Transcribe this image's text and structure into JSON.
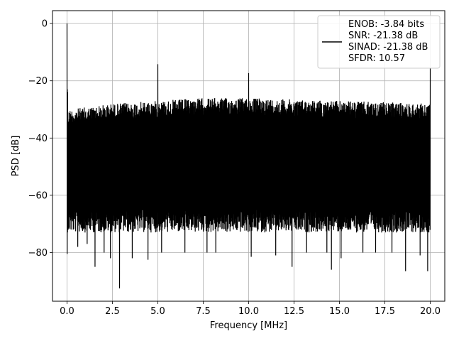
{
  "chart_data": {
    "type": "line",
    "title": "",
    "xlabel": "Frequency [MHz]",
    "ylabel": "PSD [dB]",
    "xlim": [
      -0.8,
      20.8
    ],
    "ylim": [
      -97,
      4.5
    ],
    "xticks": [
      0.0,
      2.5,
      5.0,
      7.5,
      10.0,
      12.5,
      15.0,
      17.5,
      20.0
    ],
    "xtick_labels": [
      "0.0",
      "2.5",
      "5.0",
      "7.5",
      "10.0",
      "12.5",
      "15.0",
      "17.5",
      "20.0"
    ],
    "yticks": [
      0,
      -20,
      -40,
      -60,
      -80
    ],
    "ytick_labels": [
      "0",
      "−20",
      "−40",
      "−60",
      "−80"
    ],
    "grid": true,
    "legend_position": "top-right",
    "legend_entries": [
      "ENOB: -3.84 bits",
      "SNR: -21.38 dB",
      "SINAD: -21.38 dB",
      "SFDR: 10.57"
    ],
    "series": [
      {
        "color": "#000000",
        "noise_band": {
          "x_range": [
            0.0,
            20.0
          ],
          "upper_envelope": [
            {
              "x": 0.1,
              "y": -30
            },
            {
              "x": 2.5,
              "y": -28
            },
            {
              "x": 5.0,
              "y": -27
            },
            {
              "x": 7.5,
              "y": -26
            },
            {
              "x": 10.0,
              "y": -26
            },
            {
              "x": 12.5,
              "y": -26.5
            },
            {
              "x": 15.0,
              "y": -27
            },
            {
              "x": 17.5,
              "y": -27.5
            },
            {
              "x": 20.0,
              "y": -28
            }
          ],
          "lower_envelope_typical": -71,
          "deep_minima": [
            {
              "x": 0.0,
              "y": -80.5
            },
            {
              "x": 0.6,
              "y": -78
            },
            {
              "x": 1.1,
              "y": -77
            },
            {
              "x": 1.55,
              "y": -85
            },
            {
              "x": 2.05,
              "y": -80
            },
            {
              "x": 2.4,
              "y": -82
            },
            {
              "x": 2.9,
              "y": -92.5
            },
            {
              "x": 3.6,
              "y": -82
            },
            {
              "x": 4.45,
              "y": -82.5
            },
            {
              "x": 5.2,
              "y": -80
            },
            {
              "x": 6.5,
              "y": -80
            },
            {
              "x": 7.7,
              "y": -80
            },
            {
              "x": 8.2,
              "y": -80
            },
            {
              "x": 10.15,
              "y": -81.5
            },
            {
              "x": 11.5,
              "y": -81
            },
            {
              "x": 12.4,
              "y": -85
            },
            {
              "x": 13.2,
              "y": -80
            },
            {
              "x": 14.3,
              "y": -80
            },
            {
              "x": 14.55,
              "y": -86
            },
            {
              "x": 15.1,
              "y": -82
            },
            {
              "x": 16.3,
              "y": -80
            },
            {
              "x": 17.0,
              "y": -80
            },
            {
              "x": 17.9,
              "y": -80
            },
            {
              "x": 18.65,
              "y": -86.5
            },
            {
              "x": 19.45,
              "y": -81
            },
            {
              "x": 19.85,
              "y": -86.5
            }
          ]
        },
        "spikes": [
          {
            "x": 0.0,
            "y": 0.0
          },
          {
            "x": 5.0,
            "y": -14.2
          },
          {
            "x": 10.0,
            "y": -17.3
          },
          {
            "x": 20.0,
            "y": -15.5
          }
        ]
      }
    ]
  }
}
